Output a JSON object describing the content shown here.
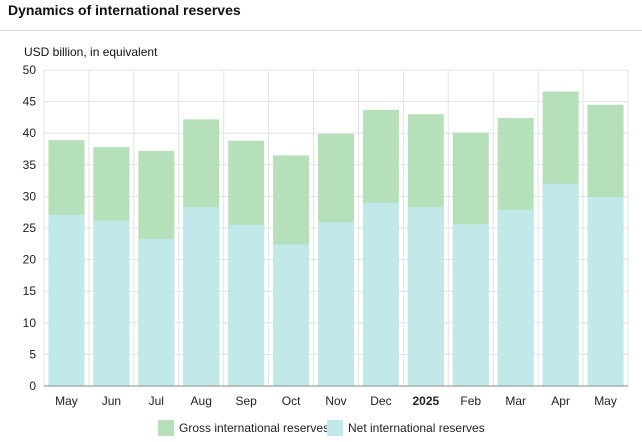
{
  "page": {
    "title": "Dynamics of international reserves",
    "unit_label": "USD billion, in equivalent"
  },
  "colors": {
    "gross": "#b6e0b9",
    "net": "#c2e9e9",
    "grid": "#e3e3e3",
    "axis": "#8a8a8a"
  },
  "chart_data": {
    "type": "bar",
    "stacked": false,
    "overlapped": true,
    "title": "Dynamics of international reserves",
    "ylabel": "USD billion, in equivalent",
    "xlabel": "",
    "ylim": [
      0,
      50
    ],
    "yticks": [
      0,
      5,
      10,
      15,
      20,
      25,
      30,
      35,
      40,
      45,
      50
    ],
    "grid": true,
    "categories": [
      "May",
      "Jun",
      "Jul",
      "Aug",
      "Sep",
      "Oct",
      "Nov",
      "Dec",
      "2025",
      "Feb",
      "Mar",
      "Apr",
      "May"
    ],
    "bold_categories": [
      "2025"
    ],
    "series": [
      {
        "name": "Gross international reserves",
        "color": "#b6e0b9",
        "values": [
          38.9,
          37.8,
          37.2,
          42.2,
          38.8,
          36.5,
          39.9,
          43.7,
          43.0,
          40.1,
          42.4,
          46.6,
          44.5
        ]
      },
      {
        "name": "Net international reserves",
        "color": "#c2e9e9",
        "values": [
          27.1,
          26.2,
          23.3,
          28.3,
          25.5,
          22.4,
          25.9,
          29.0,
          28.3,
          25.6,
          27.9,
          32.0,
          29.9
        ]
      }
    ],
    "legend": {
      "position": "bottom-center",
      "items": [
        "Gross international reserves",
        "Net international reserves"
      ]
    }
  }
}
